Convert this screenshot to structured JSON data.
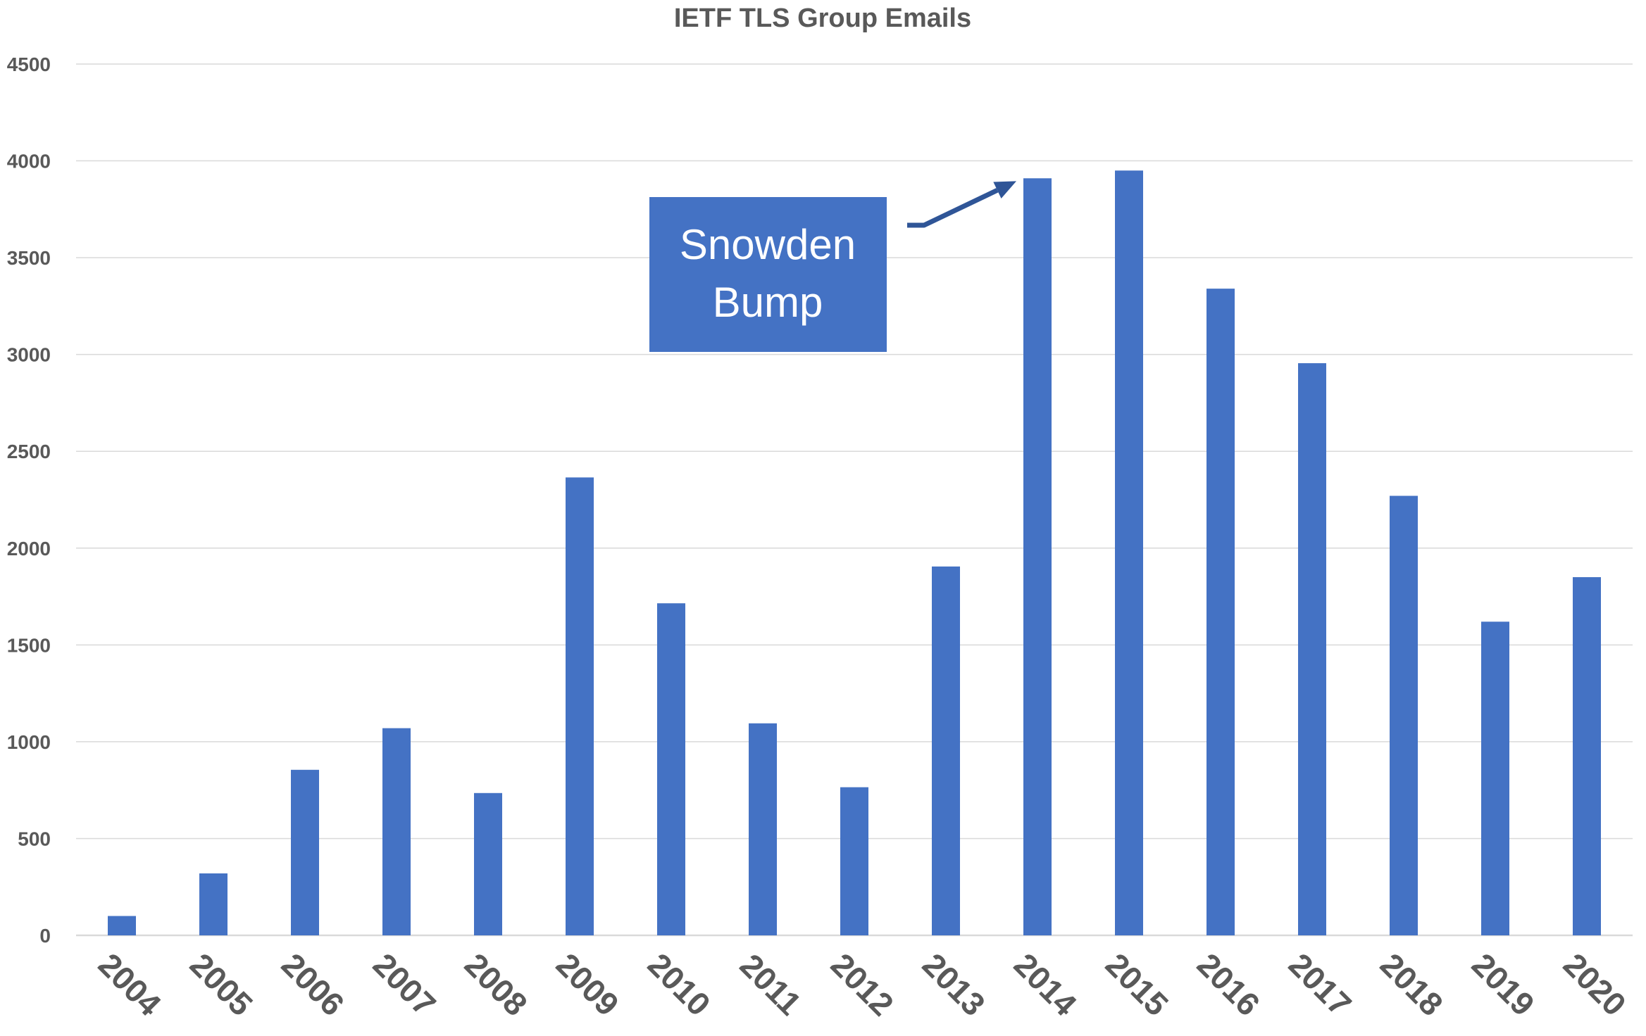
{
  "chart_data": {
    "type": "bar",
    "title": "IETF TLS Group Emails",
    "xlabel": "",
    "ylabel": "",
    "categories": [
      "2004",
      "2005",
      "2006",
      "2007",
      "2008",
      "2009",
      "2010",
      "2011",
      "2012",
      "2013",
      "2014",
      "2015",
      "2016",
      "2017",
      "2018",
      "2019",
      "2020"
    ],
    "values": [
      100,
      320,
      855,
      1070,
      735,
      2365,
      1715,
      1095,
      765,
      1905,
      3910,
      3950,
      3340,
      2955,
      2270,
      1620,
      1850
    ],
    "ylim": [
      0,
      4500
    ],
    "yticks": [
      0,
      500,
      1000,
      1500,
      2000,
      2500,
      3000,
      3500,
      4000,
      4500
    ],
    "grid": true,
    "legend": "none",
    "colors": {
      "bar": "#4472C4",
      "grid": "#D9D9D9",
      "text": "#595959",
      "annotation_box": "#4472C4",
      "arrow": "#2F5597"
    },
    "annotation": {
      "lines": [
        "Snowden",
        "Bump"
      ],
      "points_to": "2014"
    }
  }
}
